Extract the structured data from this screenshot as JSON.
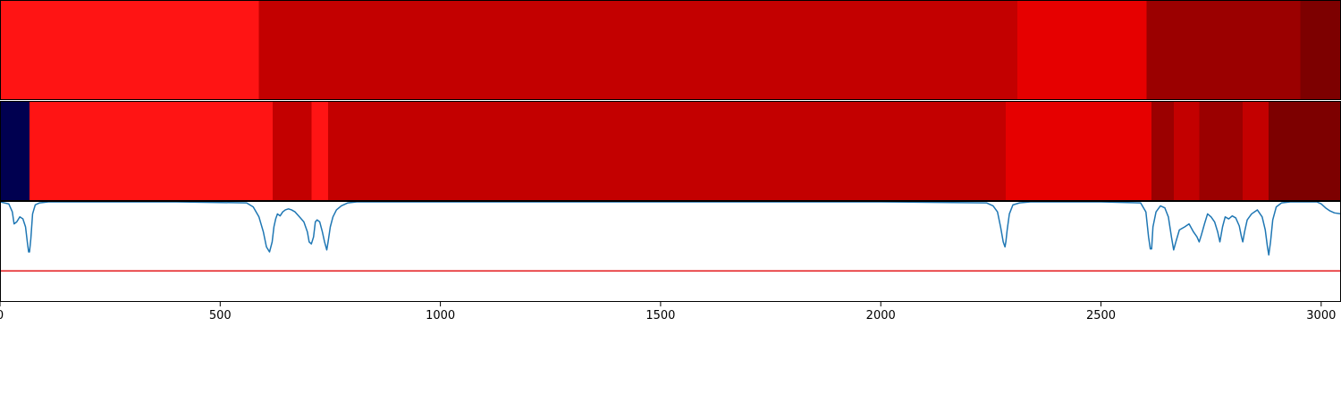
{
  "chart_data": [
    {
      "type": "heatmap",
      "xlim": [
        0,
        3045
      ],
      "colors": {
        "dark_navy": "#000050",
        "bright_red": "#ff1414",
        "mid_red": "#e60000",
        "red": "#c30000",
        "dark_red": "#9b0000",
        "darkest_red": "#7d0000"
      },
      "segments": [
        {
          "start": 0,
          "end": 588,
          "color": "bright_red"
        },
        {
          "start": 588,
          "end": 2310,
          "color": "red"
        },
        {
          "start": 2310,
          "end": 2603,
          "color": "mid_red"
        },
        {
          "start": 2603,
          "end": 2953,
          "color": "dark_red"
        },
        {
          "start": 2953,
          "end": 3045,
          "color": "darkest_red"
        }
      ]
    },
    {
      "type": "heatmap",
      "xlim": [
        0,
        3045
      ],
      "segments": [
        {
          "start": 0,
          "end": 67,
          "color": "dark_navy"
        },
        {
          "start": 67,
          "end": 619,
          "color": "bright_red"
        },
        {
          "start": 619,
          "end": 707,
          "color": "red"
        },
        {
          "start": 707,
          "end": 745,
          "color": "bright_red"
        },
        {
          "start": 745,
          "end": 2284,
          "color": "red"
        },
        {
          "start": 2284,
          "end": 2615,
          "color": "mid_red"
        },
        {
          "start": 2615,
          "end": 2665,
          "color": "dark_red"
        },
        {
          "start": 2665,
          "end": 2723,
          "color": "red"
        },
        {
          "start": 2723,
          "end": 2822,
          "color": "dark_red"
        },
        {
          "start": 2822,
          "end": 2881,
          "color": "red"
        },
        {
          "start": 2881,
          "end": 3045,
          "color": "darkest_red"
        }
      ]
    },
    {
      "type": "line",
      "xlim": [
        0,
        3045
      ],
      "ylim": [
        0,
        1
      ],
      "x_ticks": [
        0,
        500,
        1000,
        1500,
        2000,
        2500,
        3000
      ],
      "x_tick_labels": [
        "0",
        "500",
        "1000",
        "1500",
        "2000",
        "2500",
        "3000"
      ],
      "threshold": {
        "y": 0.31,
        "color": "#e31a1c"
      },
      "series": [
        {
          "color": "#1f77b4",
          "x": [
            0,
            20,
            28,
            32,
            38,
            45,
            52,
            58,
            62,
            65,
            67,
            70,
            74,
            80,
            90,
            110,
            200,
            400,
            560,
            575,
            588,
            598,
            605,
            612,
            618,
            622,
            626,
            630,
            636,
            642,
            648,
            655,
            662,
            670,
            680,
            690,
            698,
            702,
            707,
            712,
            716,
            720,
            726,
            732,
            737,
            742,
            745,
            750,
            756,
            764,
            775,
            790,
            810,
            1000,
            1500,
            2000,
            2240,
            2255,
            2265,
            2272,
            2278,
            2282,
            2284,
            2287,
            2292,
            2300,
            2315,
            2340,
            2500,
            2590,
            2602,
            2608,
            2612,
            2615,
            2618,
            2625,
            2635,
            2645,
            2653,
            2660,
            2665,
            2670,
            2678,
            2690,
            2700,
            2710,
            2718,
            2723,
            2728,
            2735,
            2742,
            2750,
            2758,
            2765,
            2770,
            2776,
            2782,
            2790,
            2798,
            2806,
            2814,
            2819,
            2822,
            2826,
            2832,
            2842,
            2855,
            2866,
            2873,
            2878,
            2881,
            2885,
            2890,
            2898,
            2910,
            2930,
            2950,
            2990,
            3000,
            3010,
            3020,
            3030,
            3045
          ],
          "y": [
            1.0,
            0.98,
            0.9,
            0.78,
            0.8,
            0.85,
            0.83,
            0.75,
            0.6,
            0.5,
            0.5,
            0.63,
            0.88,
            0.97,
            0.99,
            1.0,
            1.0,
            1.0,
            0.99,
            0.95,
            0.85,
            0.7,
            0.55,
            0.5,
            0.6,
            0.75,
            0.83,
            0.88,
            0.86,
            0.9,
            0.92,
            0.93,
            0.92,
            0.9,
            0.85,
            0.8,
            0.7,
            0.6,
            0.58,
            0.65,
            0.8,
            0.82,
            0.8,
            0.7,
            0.6,
            0.52,
            0.6,
            0.75,
            0.85,
            0.92,
            0.96,
            0.99,
            1.0,
            1.0,
            1.0,
            1.0,
            0.99,
            0.96,
            0.9,
            0.75,
            0.6,
            0.55,
            0.6,
            0.72,
            0.88,
            0.97,
            0.99,
            1.0,
            1.0,
            0.99,
            0.9,
            0.65,
            0.53,
            0.53,
            0.75,
            0.9,
            0.96,
            0.94,
            0.85,
            0.65,
            0.52,
            0.6,
            0.72,
            0.75,
            0.78,
            0.7,
            0.65,
            0.6,
            0.67,
            0.78,
            0.88,
            0.85,
            0.8,
            0.7,
            0.6,
            0.75,
            0.85,
            0.83,
            0.86,
            0.84,
            0.76,
            0.65,
            0.6,
            0.7,
            0.82,
            0.88,
            0.92,
            0.85,
            0.72,
            0.55,
            0.47,
            0.6,
            0.82,
            0.95,
            0.99,
            1.0,
            1.0,
            1.0,
            0.98,
            0.94,
            0.91,
            0.89,
            0.88
          ]
        }
      ]
    }
  ]
}
